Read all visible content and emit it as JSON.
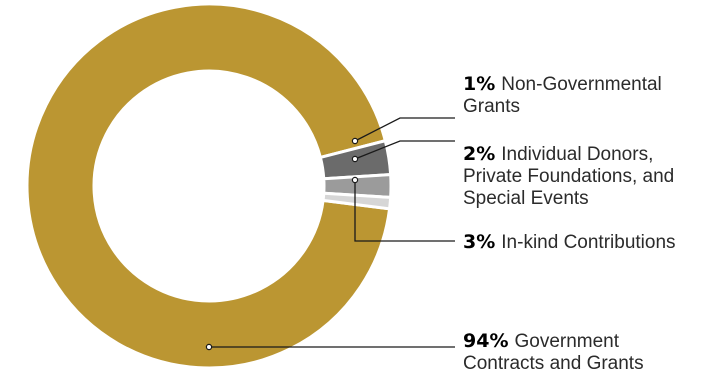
{
  "chart_data": {
    "type": "donut",
    "title": "",
    "slices": [
      {
        "pct": "94%",
        "value": 94,
        "lines": [
          "Government",
          "Contracts and Grants"
        ],
        "color": "#bb9632"
      },
      {
        "pct": "3%",
        "value": 3,
        "lines": [
          "In-kind Contributions"
        ],
        "color": "#6b6b6b"
      },
      {
        "pct": "2%",
        "value": 2,
        "lines": [
          "Individual Donors,",
          "Private Foundations, and",
          "Special Events"
        ],
        "color": "#9b9b9b"
      },
      {
        "pct": "1%",
        "value": 1,
        "lines": [
          "Non-Governmental",
          "Grants"
        ],
        "color": "#d6d6d6"
      }
    ]
  }
}
